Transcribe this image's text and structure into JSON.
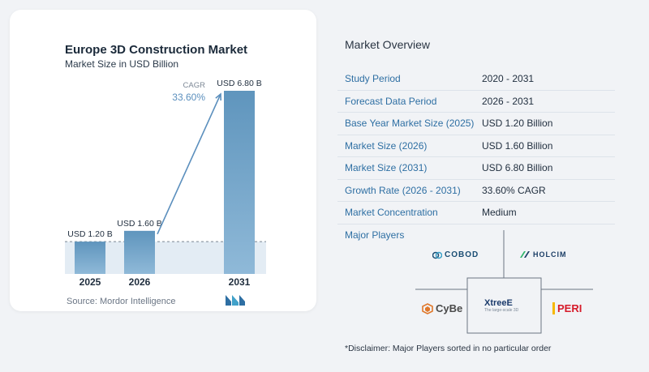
{
  "chart_data": {
    "type": "bar",
    "title": "Europe 3D Construction Market",
    "subtitle": "Market Size in USD Billion",
    "categories": [
      "2025",
      "2026",
      "2031"
    ],
    "values": [
      1.2,
      1.6,
      6.8
    ],
    "value_labels": [
      "USD 1.20 B",
      "USD 1.60 B",
      "USD 6.80 B"
    ],
    "ylim": [
      0,
      6.8
    ],
    "annotation": {
      "label": "CAGR",
      "value": "33.60%"
    },
    "colors": {
      "bar": "#5f95bd",
      "bar_light": "#8fb9d8",
      "shade": "#e3ecf4",
      "arrow": "#5b8fbd"
    }
  },
  "source": "Source:  Mordor Intelligence",
  "overview": {
    "title": "Market Overview",
    "rows": [
      {
        "label": "Study Period",
        "value": "2020 - 2031"
      },
      {
        "label": "Forecast Data Period",
        "value": "2026 - 2031"
      },
      {
        "label": "Base Year Market Size (2025)",
        "value": "USD 1.20 Billion"
      },
      {
        "label": "Market Size (2026)",
        "value": "USD 1.60 Billion"
      },
      {
        "label": "Market Size (2031)",
        "value": "USD 6.80 Billion"
      },
      {
        "label": "Growth Rate (2026 - 2031)",
        "value": "33.60% CAGR"
      },
      {
        "label": "Market Concentration",
        "value": "Medium"
      }
    ]
  },
  "players": {
    "title": "Major Players",
    "names": [
      "COBOD",
      "HOLCIM",
      "CyBe",
      "XtreeE",
      "PERI"
    ],
    "xtreee_tagline": "The large-scale 3D"
  },
  "disclaimer": "*Disclaimer: Major Players sorted in no particular order"
}
